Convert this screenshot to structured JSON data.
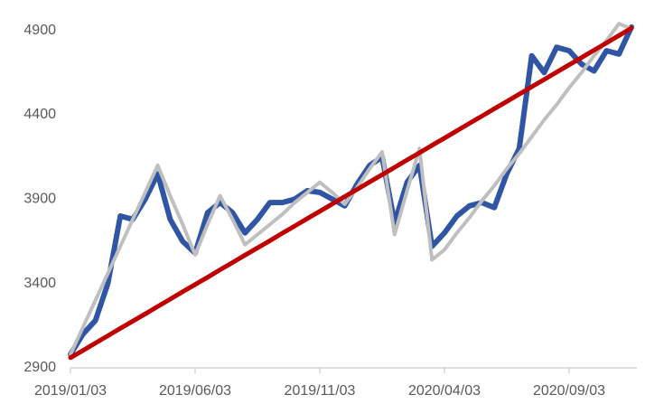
{
  "chart_data": {
    "type": "line",
    "categories": [
      "2019/01/03",
      null,
      null,
      null,
      null,
      null,
      null,
      null,
      null,
      null,
      "2019/06/03",
      null,
      null,
      null,
      null,
      null,
      null,
      null,
      null,
      null,
      "2019/11/03",
      null,
      null,
      null,
      null,
      null,
      null,
      null,
      null,
      null,
      "2020/04/03",
      null,
      null,
      null,
      null,
      null,
      null,
      null,
      null,
      null,
      "2020/09/03",
      null,
      null,
      null,
      null,
      null
    ],
    "series": [
      {
        "color": "#2f55a4",
        "values": [
          2980,
          3100,
          3180,
          3400,
          3800,
          3780,
          3900,
          4050,
          3780,
          3650,
          3580,
          3820,
          3880,
          3820,
          3700,
          3780,
          3880,
          3880,
          3900,
          3950,
          3940,
          3900,
          3860,
          3990,
          4100,
          4150,
          3760,
          4000,
          4100,
          3620,
          3700,
          3800,
          3860,
          3880,
          3850,
          4050,
          4200,
          4750,
          4650,
          4800,
          4780,
          4700,
          4660,
          4780,
          4760,
          4920
        ]
      },
      {
        "color": "#bfbfbf",
        "values": [
          2980,
          3140,
          3300,
          3460,
          3620,
          3780,
          3940,
          4100,
          3920,
          3750,
          3570,
          3750,
          3920,
          3780,
          3630,
          3690,
          3750,
          3810,
          3880,
          3940,
          4000,
          3940,
          3870,
          3970,
          4080,
          4180,
          3690,
          3950,
          4200,
          3540,
          3600,
          3700,
          3790,
          3890,
          3980,
          4080,
          4170,
          4270,
          4370,
          4460,
          4560,
          4650,
          4750,
          4840,
          4940,
          4910
        ]
      },
      {
        "color": "#c00000",
        "values": [
          2960,
          3003,
          3047,
          3090,
          3134,
          3177,
          3220,
          3264,
          3307,
          3351,
          3394,
          3437,
          3481,
          3524,
          3568,
          3611,
          3654,
          3698,
          3741,
          3785,
          3828,
          3871,
          3915,
          3958,
          4002,
          4045,
          4088,
          4132,
          4175,
          4219,
          4262,
          4305,
          4349,
          4392,
          4436,
          4479,
          4522,
          4566,
          4609,
          4653,
          4696,
          4739,
          4783,
          4826,
          4870,
          4913
        ]
      }
    ],
    "ylim": [
      2900,
      5000
    ],
    "yticks": [
      2900,
      3400,
      3900,
      4400,
      4900
    ],
    "grid": false
  }
}
